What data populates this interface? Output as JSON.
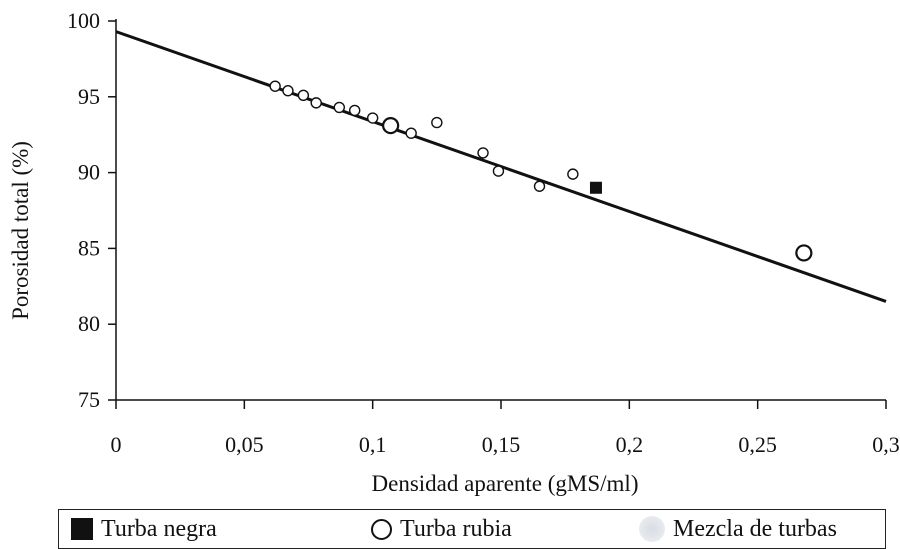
{
  "chart_data": {
    "type": "scatter",
    "xlabel": "Densidad aparente (gMS/ml)",
    "ylabel": "Porosidad total (%)",
    "xlim": [
      0,
      0.3
    ],
    "ylim": [
      75,
      100
    ],
    "x_ticks": [
      0,
      0.05,
      0.1,
      0.15,
      0.2,
      0.25,
      0.3
    ],
    "x_tick_labels": [
      "0",
      "0,05",
      "0,1",
      "0,15",
      "0,2",
      "0,25",
      "0,3"
    ],
    "y_ticks": [
      75,
      80,
      85,
      90,
      95,
      100
    ],
    "y_tick_labels": [
      "75",
      "80",
      "85",
      "90",
      "95",
      "100"
    ],
    "grid": false,
    "legend_position": "bottom",
    "series": [
      {
        "name": "Turba negra",
        "marker": "filled-square",
        "color": "#111111",
        "points": [
          [
            0.187,
            89.0
          ]
        ]
      },
      {
        "name": "Turba rubia",
        "marker": "open-circle",
        "color": "#111111",
        "points": [
          [
            0.062,
            95.7
          ],
          [
            0.067,
            95.4
          ],
          [
            0.073,
            95.1
          ],
          [
            0.078,
            94.6
          ],
          [
            0.087,
            94.3
          ],
          [
            0.093,
            94.1
          ],
          [
            0.1,
            93.6
          ],
          [
            0.107,
            93.1
          ],
          [
            0.115,
            92.6
          ],
          [
            0.125,
            93.3
          ],
          [
            0.143,
            91.3
          ],
          [
            0.149,
            90.1
          ],
          [
            0.165,
            89.1
          ],
          [
            0.178,
            89.9
          ],
          [
            0.268,
            84.7
          ]
        ],
        "large_points": [
          7,
          14
        ]
      },
      {
        "name": "Mezcla de turbas",
        "marker": "grey-circle",
        "color": "#dde0e6",
        "points": []
      }
    ],
    "trendline": {
      "x": [
        0,
        0.3
      ],
      "y": [
        99.3,
        81.5
      ]
    }
  }
}
